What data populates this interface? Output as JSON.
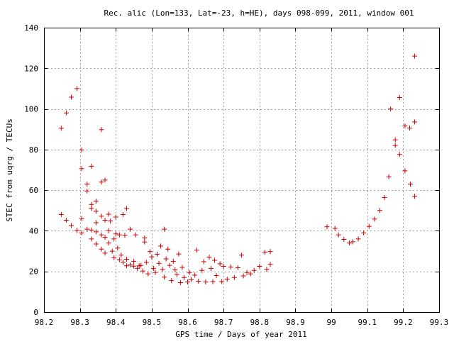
{
  "chart_data": {
    "type": "scatter",
    "title": "Rec. alic (Lon=133, Lat=-23, h=HE), days 098-099, 2011, window 001",
    "xlabel": "GPS time / Days of year 2011",
    "ylabel": "STEC from uqrg / TECUs",
    "xlim": [
      98.2,
      99.3
    ],
    "ylim": [
      0,
      140
    ],
    "xticks": [
      98.2,
      98.3,
      98.4,
      98.5,
      98.6,
      98.7,
      98.8,
      98.9,
      99.0,
      99.1,
      99.2,
      99.3
    ],
    "xtick_labels": [
      "98.2",
      "98.3",
      "98.4",
      "98.5",
      "98.6",
      "98.7",
      "98.8",
      "98.9",
      "99",
      "99.1",
      "99.2",
      "99.3"
    ],
    "yticks": [
      0,
      20,
      40,
      60,
      80,
      100,
      120,
      140
    ],
    "ytick_labels": [
      "0",
      "20",
      "40",
      "60",
      "80",
      "100",
      "120",
      "140"
    ],
    "grid": true,
    "marker": "+",
    "color": "#cc0000",
    "series": [
      {
        "points": [
          [
            98.248,
            90.5
          ],
          [
            98.262,
            98.0
          ],
          [
            98.276,
            105.8
          ],
          [
            98.292,
            110.0
          ],
          [
            98.305,
            79.8
          ],
          [
            98.305,
            70.6
          ],
          [
            98.32,
            63.0
          ],
          [
            98.32,
            59.6
          ],
          [
            98.332,
            71.8
          ],
          [
            98.332,
            53.0
          ],
          [
            98.332,
            51.0
          ],
          [
            98.345,
            54.6
          ],
          [
            98.345,
            49.6
          ],
          [
            98.36,
            89.8
          ],
          [
            98.36,
            64.0
          ],
          [
            98.37,
            65.0
          ],
          [
            98.248,
            48.0
          ],
          [
            98.262,
            45.2
          ],
          [
            98.276,
            42.6
          ],
          [
            98.292,
            40.2
          ],
          [
            98.305,
            39.0
          ],
          [
            98.305,
            46.0
          ],
          [
            98.32,
            40.8
          ],
          [
            98.332,
            40.4
          ],
          [
            98.332,
            36.0
          ],
          [
            98.345,
            39.5
          ],
          [
            98.345,
            33.5
          ],
          [
            98.345,
            44.0
          ],
          [
            98.36,
            47.2
          ],
          [
            98.36,
            38.0
          ],
          [
            98.36,
            31.0
          ],
          [
            98.37,
            45.2
          ],
          [
            98.37,
            36.8
          ],
          [
            98.37,
            29.0
          ],
          [
            98.38,
            48.2
          ],
          [
            98.38,
            40.0
          ],
          [
            98.38,
            34.0
          ],
          [
            98.385,
            44.8
          ],
          [
            98.39,
            30.0
          ],
          [
            98.395,
            36.0
          ],
          [
            98.395,
            26.8
          ],
          [
            98.4,
            46.8
          ],
          [
            98.4,
            38.5
          ],
          [
            98.405,
            31.5
          ],
          [
            98.41,
            25.8
          ],
          [
            98.41,
            38.0
          ],
          [
            98.415,
            28.0
          ],
          [
            98.42,
            48.0
          ],
          [
            98.42,
            24.5
          ],
          [
            98.425,
            37.8
          ],
          [
            98.43,
            51.0
          ],
          [
            98.43,
            26.0
          ],
          [
            98.43,
            22.8
          ],
          [
            98.44,
            40.8
          ],
          [
            98.44,
            23.2
          ],
          [
            98.45,
            25.0
          ],
          [
            98.45,
            22.6
          ],
          [
            98.455,
            38.0
          ],
          [
            98.46,
            21.5
          ],
          [
            98.465,
            22.8
          ],
          [
            98.47,
            23.0
          ],
          [
            98.475,
            20.2
          ],
          [
            98.48,
            36.5
          ],
          [
            98.48,
            34.5
          ],
          [
            98.485,
            24.5
          ],
          [
            98.49,
            18.8
          ],
          [
            98.495,
            29.8
          ],
          [
            98.5,
            27.2
          ],
          [
            98.505,
            21.5
          ],
          [
            98.51,
            19.5
          ],
          [
            98.515,
            28.5
          ],
          [
            98.52,
            24.0
          ],
          [
            98.525,
            32.5
          ],
          [
            98.53,
            21.0
          ],
          [
            98.535,
            40.8
          ],
          [
            98.535,
            17.2
          ],
          [
            98.54,
            26.2
          ],
          [
            98.545,
            31.0
          ],
          [
            98.55,
            23.0
          ],
          [
            98.555,
            15.5
          ],
          [
            98.56,
            25.0
          ],
          [
            98.565,
            20.8
          ],
          [
            98.57,
            18.5
          ],
          [
            98.575,
            28.6
          ],
          [
            98.58,
            14.5
          ],
          [
            98.585,
            22.0
          ],
          [
            98.59,
            17.0
          ],
          [
            98.6,
            14.8
          ],
          [
            98.605,
            19.5
          ],
          [
            98.61,
            16.0
          ],
          [
            98.62,
            18.2
          ],
          [
            98.625,
            30.5
          ],
          [
            98.63,
            15.2
          ],
          [
            98.64,
            20.5
          ],
          [
            98.645,
            24.8
          ],
          [
            98.65,
            14.8
          ],
          [
            98.66,
            27.0
          ],
          [
            98.665,
            21.5
          ],
          [
            98.67,
            15.0
          ],
          [
            98.675,
            25.5
          ],
          [
            98.68,
            18.0
          ],
          [
            98.69,
            23.8
          ],
          [
            98.695,
            15.0
          ],
          [
            98.7,
            22.5
          ],
          [
            98.71,
            16.2
          ],
          [
            98.72,
            22.2
          ],
          [
            98.73,
            17.0
          ],
          [
            98.74,
            21.8
          ],
          [
            98.75,
            28.0
          ],
          [
            98.755,
            17.8
          ],
          [
            98.765,
            19.5
          ],
          [
            98.775,
            18.8
          ],
          [
            98.785,
            20.5
          ],
          [
            98.8,
            22.5
          ],
          [
            98.815,
            29.4
          ],
          [
            98.82,
            21.0
          ],
          [
            98.83,
            29.8
          ],
          [
            98.83,
            23.5
          ]
        ]
      },
      {
        "points": [
          [
            98.988,
            42.0
          ],
          [
            99.01,
            41.2
          ],
          [
            99.02,
            38.0
          ],
          [
            99.035,
            35.8
          ],
          [
            99.05,
            34.0
          ],
          [
            99.06,
            34.6
          ],
          [
            99.075,
            36.0
          ],
          [
            99.09,
            39.0
          ],
          [
            99.105,
            42.2
          ],
          [
            99.12,
            45.8
          ],
          [
            99.135,
            50.0
          ],
          [
            99.148,
            56.4
          ],
          [
            99.16,
            66.6
          ],
          [
            99.165,
            100.0
          ],
          [
            99.178,
            84.8
          ],
          [
            99.178,
            82.0
          ],
          [
            99.19,
            77.6
          ],
          [
            99.19,
            105.6
          ],
          [
            99.205,
            69.5
          ],
          [
            99.205,
            91.6
          ],
          [
            99.218,
            90.6
          ],
          [
            99.22,
            63.0
          ],
          [
            99.232,
            57.0
          ],
          [
            99.232,
            93.6
          ],
          [
            99.232,
            126.0
          ]
        ]
      }
    ]
  }
}
